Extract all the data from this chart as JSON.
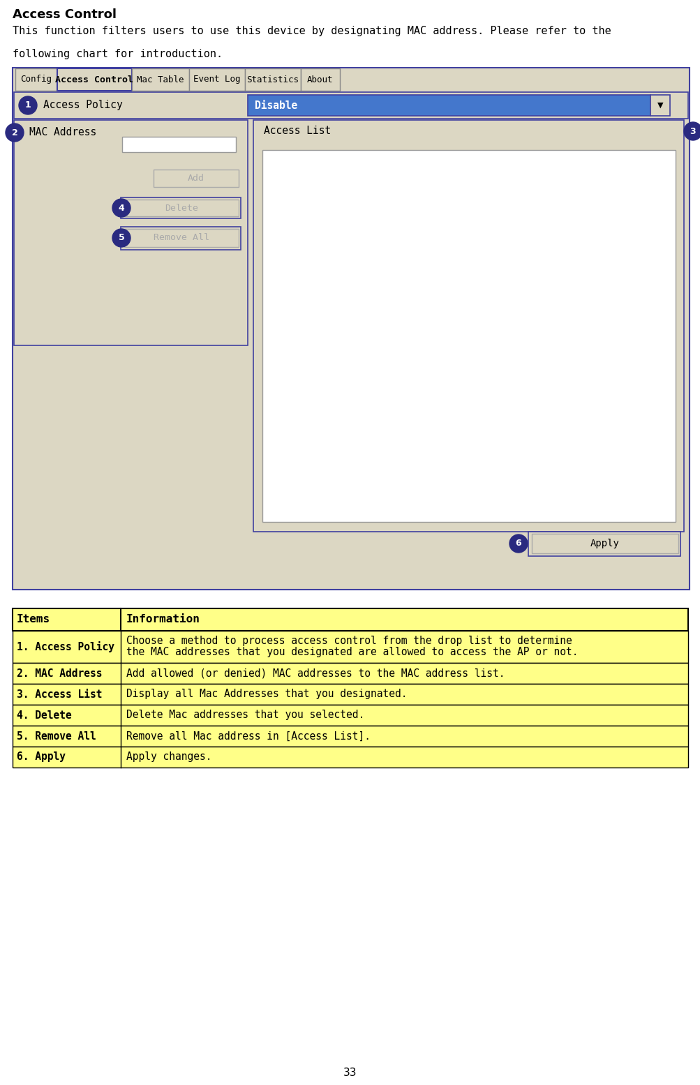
{
  "title": "Access Control",
  "intro_line1": "This function filters users to use this device by designating MAC address. Please refer to the",
  "intro_line2": "following chart for introduction.",
  "tabs": [
    "Config",
    "Access Control",
    "Mac Table",
    "Event Log",
    "Statistics",
    "About"
  ],
  "active_tab": "Access Control",
  "panel_bg": "#dcd7c3",
  "panel_border": "#4040a0",
  "tab_bg": "#dcd7c3",
  "tab_active_border": "#4040a0",
  "tab_inactive_border": "#888888",
  "dropdown_blue": "#4477CC",
  "dropdown_text": "#ffffff",
  "button_bg": "#dcd7c3",
  "button_border": "#aaaaaa",
  "button_text": "#aaaaaa",
  "circle_bg": "#2a2a80",
  "circle_text": "#ffffff",
  "input_bg": "#ffffff",
  "input_border": "#999999",
  "apply_text": "#000000",
  "page_bg": "#ffffff",
  "table_header_bg": "#ffff88",
  "table_row_bg": "#ffff88",
  "table_border": "#000000",
  "page_number": "33",
  "table_rows": [
    {
      "item": "1. Access Policy",
      "info": "Choose a method to process access control from the drop list to determine\nthe MAC addresses that you designated are allowed to access the AP or not."
    },
    {
      "item": "2. MAC Address",
      "info": "Add allowed (or denied) MAC addresses to the MAC address list."
    },
    {
      "item": "3. Access List",
      "info": "Display all Mac Addresses that you designated."
    },
    {
      "item": "4. Delete",
      "info": "Delete Mac addresses that you selected."
    },
    {
      "item": "5. Remove All",
      "info": "Remove all Mac address in [Access List]."
    },
    {
      "item": "6. Apply",
      "info": "Apply changes."
    }
  ]
}
